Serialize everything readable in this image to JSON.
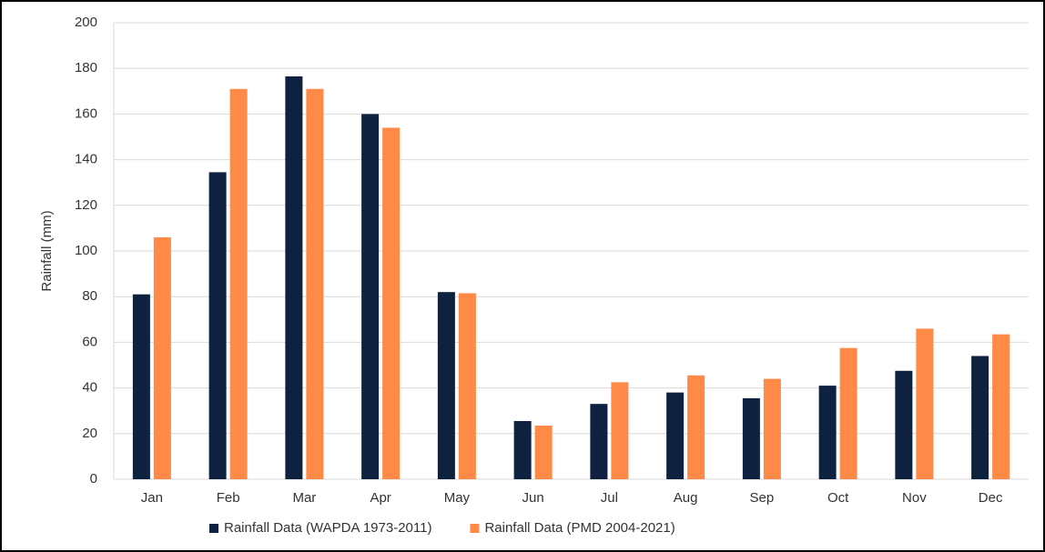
{
  "chart_data": {
    "type": "bar",
    "ylabel": "Rainfall (mm)",
    "categories": [
      "Jan",
      "Feb",
      "Mar",
      "Apr",
      "May",
      "Jun",
      "Jul",
      "Aug",
      "Sep",
      "Oct",
      "Nov",
      "Dec"
    ],
    "series": [
      {
        "name": "Rainfall Data (WAPDA 1973-2011)",
        "color": "#0e2140",
        "values": [
          81,
          134.5,
          176.5,
          160,
          82,
          25.5,
          33,
          38,
          35.5,
          41,
          47.5,
          54
        ]
      },
      {
        "name": "Rainfall Data (PMD 2004-2021)",
        "color": "#ff8a47",
        "values": [
          106,
          171,
          171,
          154,
          81.5,
          23.5,
          42.5,
          45.5,
          44,
          57.5,
          66,
          63.5
        ]
      }
    ],
    "ylim": [
      0,
      200
    ],
    "yticks": [
      0,
      20,
      40,
      60,
      80,
      100,
      120,
      140,
      160,
      180,
      200
    ],
    "grid": true,
    "legend": "bottom"
  }
}
